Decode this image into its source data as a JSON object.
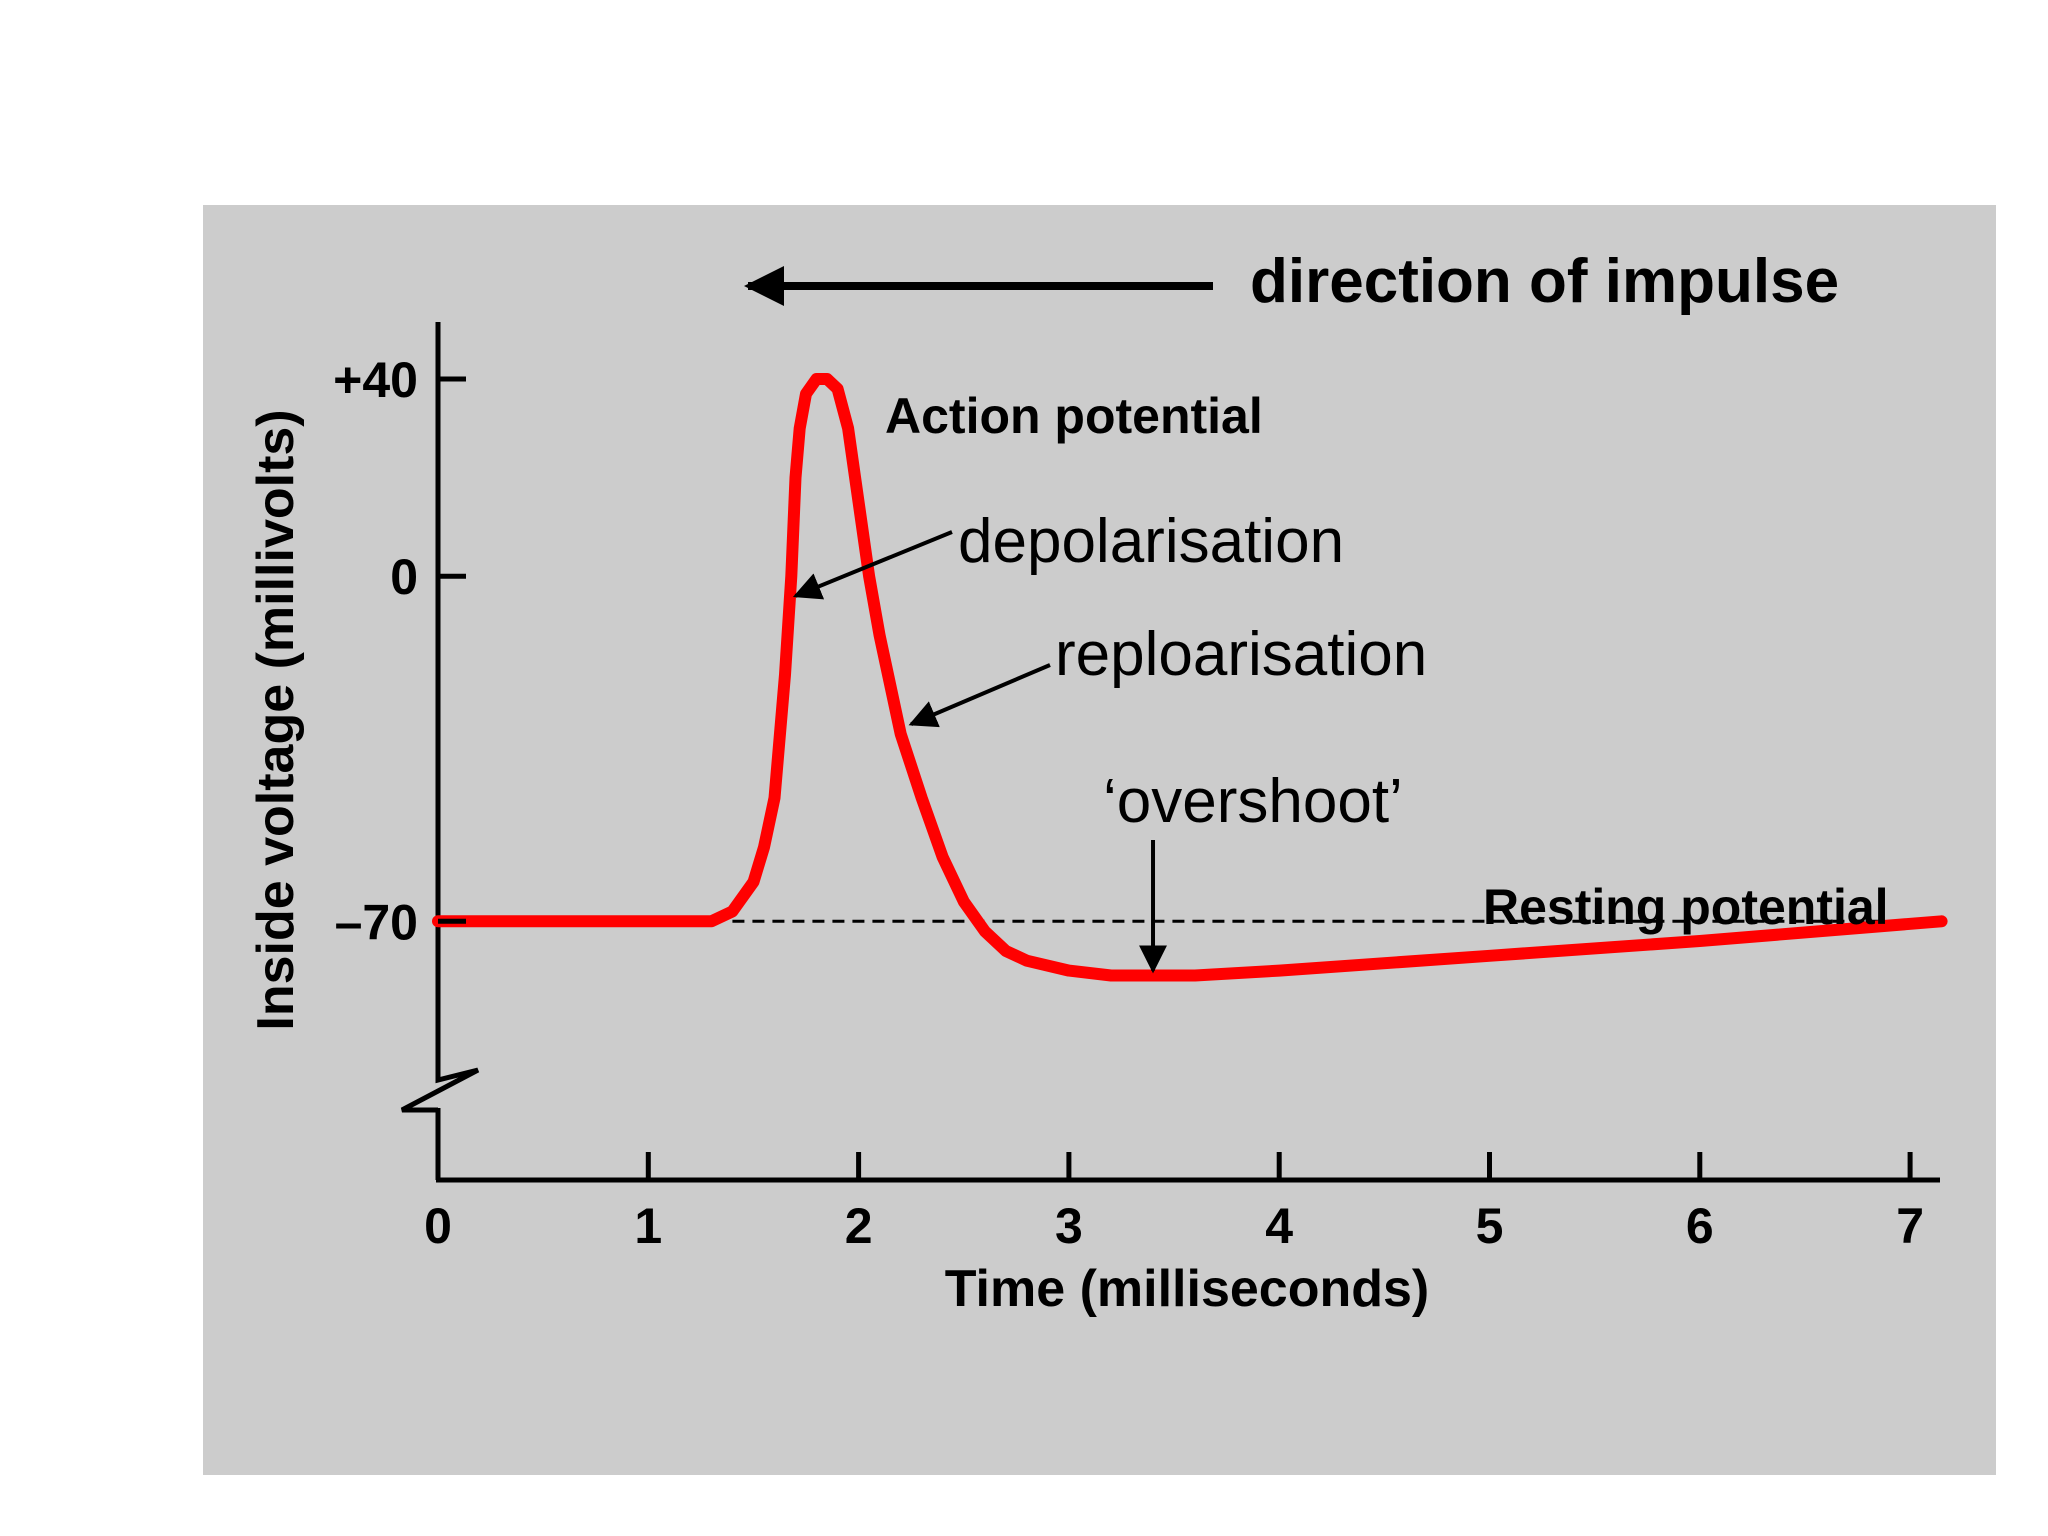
{
  "chart_data": {
    "type": "line",
    "title": "",
    "xlabel": "Time (milliseconds)",
    "ylabel": "Inside voltage (millivolts)",
    "xlim": [
      0,
      7.15
    ],
    "ylim": [
      -85,
      40
    ],
    "x_ticks": [
      0,
      1,
      2,
      3,
      4,
      5,
      6,
      7
    ],
    "x_tick_labels": [
      "0",
      "1",
      "2",
      "3",
      "4",
      "5",
      "6",
      "7"
    ],
    "y_ticks": [
      40,
      0,
      -70
    ],
    "y_tick_labels": [
      "+40",
      "0",
      "–70"
    ],
    "axis_break": true,
    "grid": false,
    "legend": "none",
    "series": [
      {
        "color": "#ff0000",
        "x": [
          0,
          1.3,
          1.4,
          1.5,
          1.55,
          1.6,
          1.65,
          1.68,
          1.7,
          1.72,
          1.75,
          1.8,
          1.85,
          1.9,
          1.95,
          2.0,
          2.05,
          2.1,
          2.2,
          2.3,
          2.4,
          2.5,
          2.6,
          2.7,
          2.8,
          3.0,
          3.2,
          3.4,
          3.6,
          4.0,
          5.0,
          6.0,
          7.15
        ],
        "y": [
          -70,
          -70,
          -68,
          -62,
          -55,
          -45,
          -20,
          0,
          20,
          30,
          37,
          40,
          40,
          38,
          30,
          15,
          0,
          -12,
          -32,
          -45,
          -57,
          -66,
          -72,
          -76,
          -78,
          -80,
          -81,
          -81,
          -81,
          -80,
          -77,
          -74,
          -70
        ]
      }
    ],
    "reference_line": {
      "y": -70,
      "x_start": 1.4,
      "x_end": 7.15,
      "style": "dashed",
      "label": "Resting potential"
    },
    "annotations": [
      {
        "text": "direction of impulse",
        "type": "arrow-left"
      },
      {
        "text": "Action potential"
      },
      {
        "text": "depolarisation",
        "arrow_target": [
          1.7,
          -4
        ]
      },
      {
        "text": "reploarisation",
        "arrow_target": [
          2.25,
          -30
        ]
      },
      {
        "text": "‘overshoot’",
        "arrow_target": [
          3.4,
          -80
        ]
      }
    ]
  }
}
